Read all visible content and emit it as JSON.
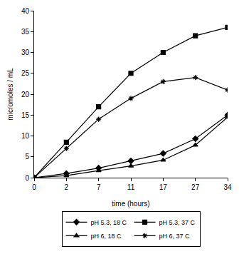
{
  "chart_data": {
    "type": "line",
    "x_label": "time (hours)",
    "y_label": "micromoles / mL",
    "categories": [
      "0",
      "2",
      "7",
      "11",
      "17",
      "27",
      "34"
    ],
    "series": [
      {
        "name": "pH 5.3, 18 C",
        "color": "#000000",
        "marker": "diamond",
        "values": [
          0,
          1,
          2.3,
          4,
          5.8,
          9.3,
          15
        ]
      },
      {
        "name": "pH 5.3, 37 C",
        "color": "#000000",
        "marker": "square",
        "values": [
          0,
          8.5,
          17,
          25,
          30,
          34,
          36
        ]
      },
      {
        "name": "pH 6, 18 C",
        "color": "#000000",
        "marker": "triangle",
        "values": [
          0,
          0.5,
          1.7,
          2.8,
          4.2,
          7.8,
          14.5
        ]
      },
      {
        "name": "pH 6, 37 C",
        "color": "#000000",
        "marker": "asterisk",
        "values": [
          0,
          7,
          14,
          19,
          23,
          24,
          21
        ]
      }
    ],
    "ylim": [
      0,
      40
    ],
    "yticks": [
      0,
      5,
      10,
      15,
      20,
      25,
      30,
      35,
      40
    ],
    "grid": false,
    "legend": "bottom"
  }
}
